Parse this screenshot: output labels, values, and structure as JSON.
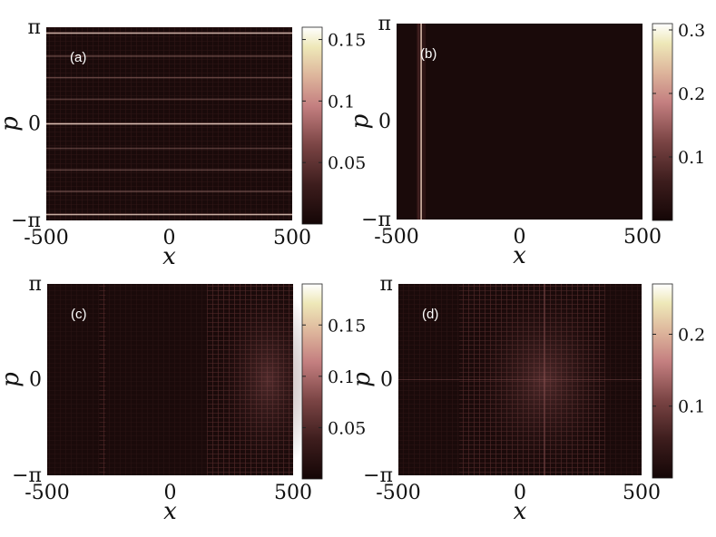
{
  "chart_data": [
    {
      "type": "heatmap",
      "label": "(a)",
      "xlabel": "x",
      "ylabel": "p",
      "xlim": [
        -500,
        500
      ],
      "ylim": [
        -3.14159,
        3.14159
      ],
      "x_ticks": [
        "-500",
        "0",
        "500"
      ],
      "y_ticks": [
        "−π",
        "0",
        "π"
      ],
      "colorbar": {
        "range": [
          0,
          0.16
        ],
        "ticks": [
          0.05,
          0.1,
          0.15
        ],
        "tick_labels": [
          "0.05",
          "0.1",
          "0.15"
        ]
      },
      "pattern": "horizontal_bands",
      "bright_p_values": [
        -2.95,
        -2.2,
        -1.5,
        -0.8,
        0.0,
        0.8,
        1.5,
        2.2,
        2.95
      ],
      "bright_strength": [
        0.6,
        0.3,
        0.3,
        0.25,
        0.7,
        0.25,
        0.3,
        0.3,
        0.6
      ]
    },
    {
      "type": "heatmap",
      "label": "(b)",
      "xlabel": "x",
      "ylabel": "p",
      "xlim": [
        -500,
        500
      ],
      "ylim": [
        -3.14159,
        3.14159
      ],
      "x_ticks": [
        "-500",
        "0",
        "500"
      ],
      "y_ticks": [
        "−π",
        "0",
        "π"
      ],
      "colorbar": {
        "range": [
          0,
          0.31
        ],
        "ticks": [
          0.1,
          0.2,
          0.3
        ],
        "tick_labels": [
          "0.1",
          "0.2",
          "0.3"
        ]
      },
      "pattern": "vertical_line",
      "bright_x_value": -400,
      "bright_strength": 0.9
    },
    {
      "type": "heatmap",
      "label": "(c)",
      "xlabel": "x",
      "ylabel": "p",
      "xlim": [
        -500,
        500
      ],
      "ylim": [
        -3.14159,
        3.14159
      ],
      "x_ticks": [
        "-500",
        "0",
        "500"
      ],
      "y_ticks": [
        "−π",
        "0",
        "π"
      ],
      "colorbar": {
        "range": [
          0,
          0.19
        ],
        "ticks": [
          0.05,
          0.1,
          0.15
        ],
        "tick_labels": [
          "0.05",
          "0.1",
          "0.15"
        ]
      },
      "pattern": "diffuse_right",
      "bright_x_range": [
        150,
        500
      ],
      "secondary_x_value": -270,
      "bright_strength": 0.45
    },
    {
      "type": "heatmap",
      "label": "(d)",
      "xlabel": "x",
      "ylabel": "p",
      "xlim": [
        -500,
        500
      ],
      "ylim": [
        -3.14159,
        3.14159
      ],
      "x_ticks": [
        "-500",
        "0",
        "500"
      ],
      "y_ticks": [
        "−π",
        "0",
        "π"
      ],
      "colorbar": {
        "range": [
          0,
          0.27
        ],
        "ticks": [
          0.1,
          0.2
        ],
        "tick_labels": [
          "0.1",
          "0.2"
        ]
      },
      "pattern": "diffuse_center",
      "bright_x_range": [
        -250,
        350
      ],
      "center_x_value": 100,
      "bright_strength": 0.4
    }
  ],
  "colors": {
    "background": "#1a0a0a",
    "colormap": [
      "#140606",
      "#3d1d1d",
      "#7a4444",
      "#c47f80",
      "#ddb49b",
      "#eee8b8",
      "#ffffff"
    ]
  }
}
